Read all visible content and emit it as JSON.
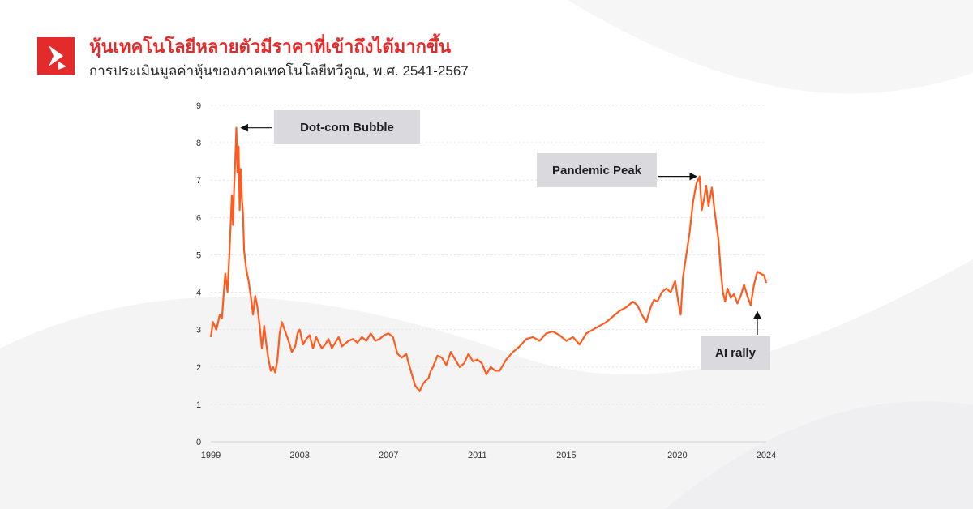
{
  "header": {
    "title": "หุ้นเทคโนโลยีหลายตัวมีราคาที่เข้าถึงได้มากขึ้น",
    "subtitle": "การประเมินมูลค่าหุ้นของภาคเทคโนโลยีทวีคูณ, พ.ศ. 2541-2567"
  },
  "colors": {
    "brand": "#e42b2b",
    "line": "#ff5b1f",
    "callout_bg": "#d9d9de"
  },
  "logo_icon": "brand-logo-icon",
  "chart_data": {
    "type": "line",
    "title": "",
    "xlabel": "",
    "ylabel": "",
    "xlim": [
      1999,
      2024
    ],
    "ylim": [
      0,
      9
    ],
    "yticks": [
      "0",
      "1",
      "2",
      "3",
      "4",
      "5",
      "6",
      "7",
      "8",
      "9"
    ],
    "xticks": [
      "1999",
      "2003",
      "2007",
      "2011",
      "2015",
      "2020",
      "2024"
    ],
    "grid": true,
    "series": [
      {
        "x": [
          1999.0,
          1999.1,
          1999.25,
          1999.4,
          1999.5,
          1999.65,
          1999.75,
          1999.85,
          1999.95,
          2000.0,
          2000.05,
          2000.1,
          2000.15,
          2000.2,
          2000.25,
          2000.3,
          2000.35,
          2000.4,
          2000.45,
          2000.5,
          2000.6,
          2000.7,
          2000.8,
          2000.9,
          2001.0,
          2001.1,
          2001.2,
          2001.3,
          2001.4,
          2001.5,
          2001.6,
          2001.7,
          2001.8,
          2001.9,
          2002.0,
          2002.1,
          2002.2,
          2002.35,
          2002.5,
          2002.65,
          2002.8,
          2002.9,
          2003.0,
          2003.15,
          2003.3,
          2003.45,
          2003.6,
          2003.75,
          2003.9,
          2004.0,
          2004.15,
          2004.3,
          2004.45,
          2004.6,
          2004.75,
          2004.9,
          2005.0,
          2005.2,
          2005.4,
          2005.6,
          2005.8,
          2006.0,
          2006.2,
          2006.4,
          2006.6,
          2006.8,
          2007.0,
          2007.2,
          2007.4,
          2007.6,
          2007.8,
          2007.9,
          2008.0,
          2008.2,
          2008.4,
          2008.55,
          2008.7,
          2008.8,
          2008.9,
          2009.0,
          2009.2,
          2009.4,
          2009.6,
          2009.8,
          2010.0,
          2010.2,
          2010.4,
          2010.6,
          2010.8,
          2011.0,
          2011.2,
          2011.4,
          2011.6,
          2011.8,
          2012.0,
          2012.3,
          2012.6,
          2012.9,
          2013.2,
          2013.5,
          2013.8,
          2014.1,
          2014.4,
          2014.7,
          2015.0,
          2015.3,
          2015.6,
          2015.9,
          2016.2,
          2016.5,
          2016.8,
          2017.1,
          2017.4,
          2017.7,
          2018.0,
          2018.2,
          2018.4,
          2018.6,
          2018.8,
          2018.95,
          2019.1,
          2019.3,
          2019.5,
          2019.7,
          2019.9,
          2020.05,
          2020.15,
          2020.25,
          2020.4,
          2020.55,
          2020.7,
          2020.85,
          2021.0,
          2021.1,
          2021.2,
          2021.3,
          2021.4,
          2021.55,
          2021.7,
          2021.85,
          2021.95,
          2022.05,
          2022.15,
          2022.25,
          2022.4,
          2022.55,
          2022.7,
          2022.85,
          2023.0,
          2023.15,
          2023.3,
          2023.45,
          2023.6,
          2023.75,
          2023.9,
          2024.0
        ],
        "values": [
          2.8,
          3.2,
          3.0,
          3.4,
          3.3,
          4.5,
          4.0,
          5.2,
          6.6,
          5.8,
          6.8,
          7.5,
          8.4,
          7.2,
          7.9,
          6.2,
          7.3,
          6.5,
          6.1,
          5.1,
          4.6,
          4.3,
          3.9,
          3.4,
          3.9,
          3.6,
          3.1,
          2.5,
          3.1,
          2.6,
          2.2,
          1.9,
          2.0,
          1.85,
          2.2,
          2.9,
          3.2,
          2.95,
          2.7,
          2.4,
          2.55,
          2.9,
          3.0,
          2.6,
          2.75,
          2.85,
          2.5,
          2.8,
          2.6,
          2.5,
          2.6,
          2.75,
          2.5,
          2.65,
          2.8,
          2.55,
          2.6,
          2.7,
          2.75,
          2.65,
          2.8,
          2.7,
          2.9,
          2.7,
          2.75,
          2.85,
          2.9,
          2.8,
          2.35,
          2.25,
          2.35,
          2.1,
          1.9,
          1.5,
          1.35,
          1.55,
          1.65,
          1.7,
          1.9,
          2.0,
          2.3,
          2.25,
          2.05,
          2.4,
          2.2,
          2.0,
          2.1,
          2.35,
          2.15,
          2.2,
          2.1,
          1.8,
          2.0,
          1.9,
          1.9,
          2.2,
          2.4,
          2.55,
          2.75,
          2.8,
          2.7,
          2.9,
          2.95,
          2.85,
          2.7,
          2.8,
          2.6,
          2.9,
          3.0,
          3.1,
          3.2,
          3.35,
          3.5,
          3.6,
          3.75,
          3.65,
          3.4,
          3.2,
          3.6,
          3.8,
          3.75,
          4.0,
          4.1,
          4.0,
          4.3,
          3.7,
          3.4,
          4.4,
          5.0,
          5.6,
          6.4,
          6.9,
          7.1,
          6.2,
          6.5,
          6.85,
          6.3,
          6.8,
          6.05,
          5.4,
          4.6,
          4.0,
          3.75,
          4.1,
          3.85,
          3.95,
          3.7,
          3.9,
          4.2,
          3.9,
          3.65,
          4.2,
          4.55,
          4.5,
          4.45,
          4.25
        ]
      }
    ],
    "annotations": [
      {
        "label": "Dot-com Bubble",
        "x": 2000.15,
        "y": 8.4
      },
      {
        "label": "Pandemic Peak",
        "x": 2021.0,
        "y": 7.1
      },
      {
        "label": "AI rally",
        "x": 2023.6,
        "y": 3.65
      }
    ]
  }
}
